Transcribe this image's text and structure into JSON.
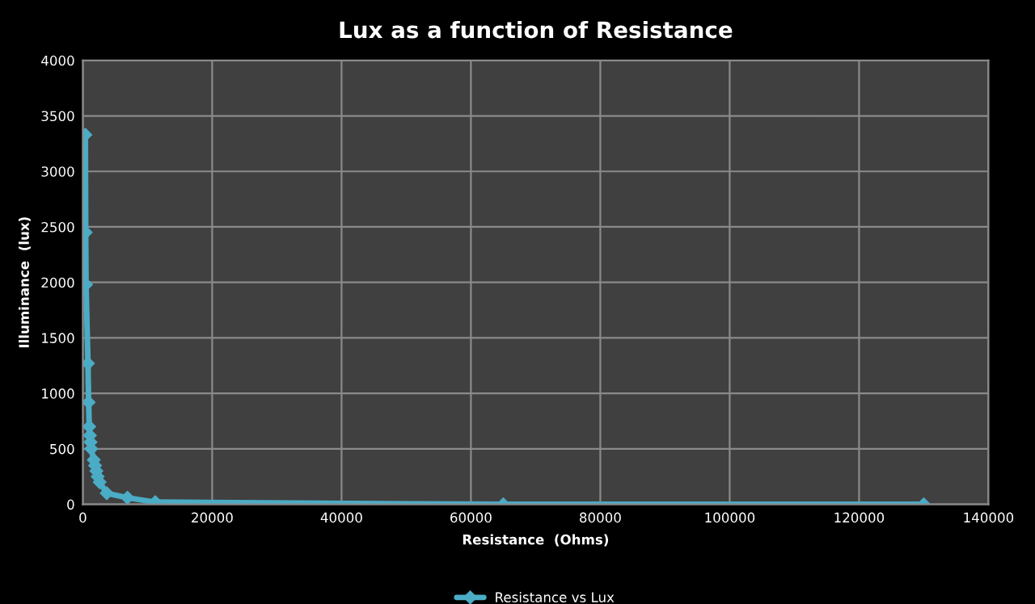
{
  "chart_data": {
    "type": "line",
    "title": "Lux as a function of Resistance",
    "xlabel": "Resistance  (Ohms)",
    "ylabel": "Illuminance  (lux)",
    "series": [
      {
        "name": "Resistance vs Lux",
        "color": "#4bacc6",
        "x": [
          400,
          450,
          500,
          800,
          900,
          1000,
          1100,
          1200,
          1300,
          1700,
          1900,
          2100,
          2300,
          2600,
          3700,
          6900,
          11200,
          65000,
          130000
        ],
        "values": [
          3330,
          2450,
          1980,
          1270,
          920,
          700,
          620,
          560,
          500,
          400,
          350,
          300,
          250,
          200,
          100,
          60,
          20,
          0,
          0
        ]
      }
    ],
    "xlim": [
      0,
      140000
    ],
    "xticks": [
      0,
      20000,
      40000,
      60000,
      80000,
      100000,
      120000,
      140000
    ],
    "ylim": [
      0,
      4000
    ],
    "yticks": [
      0,
      500,
      1000,
      1500,
      2000,
      2500,
      3000,
      3500,
      4000
    ],
    "grid": true,
    "legend": "bottom",
    "marker": "diamond",
    "line_style": "solid"
  }
}
